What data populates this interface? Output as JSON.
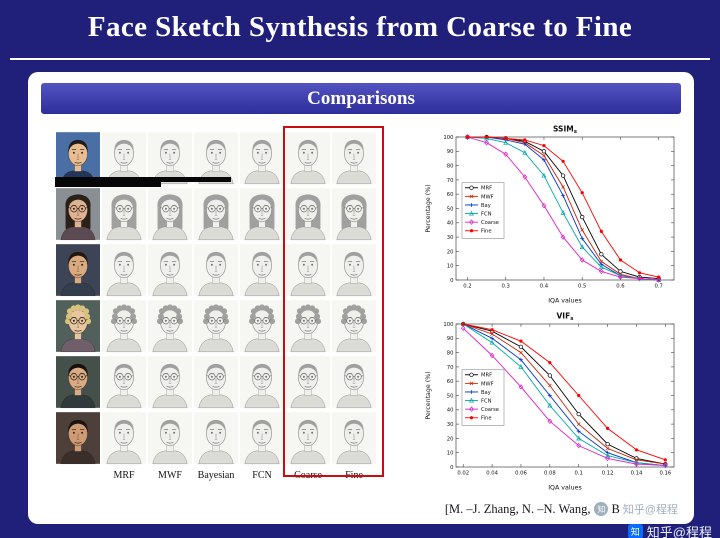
{
  "slide": {
    "title": "Face Sketch Synthesis from Coarse to Fine",
    "section_header": "Comparisons",
    "citation_prefix": "[M. –J. Zhang, N. –N. Wang,",
    "citation_suffix": "B",
    "watermark": "知乎@程程",
    "watermark_logo_char": "知"
  },
  "colors": {
    "background": "#20207b",
    "header_bar": "#3a3aad",
    "highlight_box": "#cf0a0a"
  },
  "comparison_grid": {
    "method_labels": [
      "MRF",
      "MWF",
      "Bayesian",
      "FCN",
      "Coarse",
      "Fine"
    ],
    "highlighted_methods": [
      "Coarse",
      "Fine"
    ],
    "rows": [
      {
        "hair": "short",
        "hair_color": "#1c1c1c",
        "glasses": false,
        "photo_bg": "#4a6fa5",
        "skin": "#e8bd91",
        "shirt": "#24355c"
      },
      {
        "hair": "long",
        "hair_color": "#2a2118",
        "glasses": true,
        "photo_bg": "#8a8f94",
        "skin": "#dfb293",
        "shirt": "#5b4a52"
      },
      {
        "hair": "short",
        "hair_color": "#23180f",
        "glasses": false,
        "photo_bg": "#3c4455",
        "skin": "#d9a97f",
        "shirt": "#323d4e"
      },
      {
        "hair": "curly",
        "hair_color": "#d9c27e",
        "glasses": true,
        "photo_bg": "#51605a",
        "skin": "#e9c6a2",
        "shirt": "#6e5f6b"
      },
      {
        "hair": "short",
        "hair_color": "#15100c",
        "glasses": true,
        "photo_bg": "#45504a",
        "skin": "#d8ab84",
        "shirt": "#2e3a3c"
      },
      {
        "hair": "short",
        "hair_color": "#191310",
        "glasses": false,
        "photo_bg": "#4d3f39",
        "skin": "#cf9b74",
        "shirt": "#3a2e2a"
      }
    ]
  },
  "chart_data": [
    {
      "type": "line",
      "title": "SSIM",
      "title_sub": "s",
      "xlabel": "IQA values",
      "ylabel": "Percentage (%)",
      "xlim": [
        0.17,
        0.74
      ],
      "ylim": [
        0,
        100
      ],
      "xtick_values": [
        0.2,
        0.3,
        0.4,
        0.5,
        0.6,
        0.7
      ],
      "xtick_labels": [
        "0.2",
        "0.3",
        "0.4",
        "0.5",
        "0.6",
        "0.7"
      ],
      "ytick_values": [
        0,
        10,
        20,
        30,
        40,
        50,
        60,
        70,
        80,
        90,
        100
      ],
      "legend_position": "left-middle",
      "x": [
        0.2,
        0.25,
        0.3,
        0.35,
        0.4,
        0.45,
        0.5,
        0.55,
        0.6,
        0.65,
        0.7
      ],
      "series": [
        {
          "name": "MRF",
          "color": "#000000",
          "marker": "circle",
          "values": [
            100,
            100,
            99,
            97,
            90,
            73,
            44,
            18,
            6,
            2,
            1
          ]
        },
        {
          "name": "MWF",
          "color": "#cc2200",
          "marker": "x",
          "values": [
            100,
            100,
            99,
            96,
            87,
            65,
            35,
            13,
            4,
            1,
            0
          ]
        },
        {
          "name": "Bay",
          "color": "#0033cc",
          "marker": "plus",
          "values": [
            100,
            100,
            98,
            95,
            84,
            59,
            29,
            11,
            3,
            1,
            0
          ]
        },
        {
          "name": "FCN",
          "color": "#00a8a8",
          "marker": "triangle",
          "values": [
            100,
            99,
            96,
            89,
            73,
            47,
            23,
            9,
            3,
            1,
            0
          ]
        },
        {
          "name": "Coarse",
          "color": "#e020c8",
          "marker": "diamond",
          "values": [
            100,
            96,
            88,
            72,
            52,
            30,
            14,
            6,
            2,
            1,
            0
          ]
        },
        {
          "name": "Fine",
          "color": "#ff0000",
          "marker": "dot",
          "values": [
            100,
            100,
            99,
            98,
            94,
            83,
            61,
            34,
            14,
            5,
            2
          ]
        }
      ]
    },
    {
      "type": "line",
      "title": "VIF",
      "title_sub": "s",
      "xlabel": "IQA values",
      "ylabel": "Percentage (%)",
      "xlim": [
        0.015,
        0.166
      ],
      "ylim": [
        0,
        100
      ],
      "xtick_values": [
        0.02,
        0.04,
        0.06,
        0.08,
        0.1,
        0.12,
        0.14,
        0.16
      ],
      "xtick_labels": [
        "0.02",
        "0.04",
        "0.06",
        "0.08",
        "0.1",
        "0.12",
        "0.14",
        "0.16"
      ],
      "ytick_values": [
        0,
        10,
        20,
        30,
        40,
        50,
        60,
        70,
        80,
        90,
        100
      ],
      "legend_position": "left-middle",
      "x": [
        0.02,
        0.04,
        0.06,
        0.08,
        0.1,
        0.12,
        0.14,
        0.16
      ],
      "series": [
        {
          "name": "MRF",
          "color": "#000000",
          "marker": "circle",
          "values": [
            100,
            95,
            84,
            64,
            37,
            16,
            6,
            2
          ]
        },
        {
          "name": "MWF",
          "color": "#cc2200",
          "marker": "x",
          "values": [
            100,
            93,
            80,
            57,
            30,
            13,
            5,
            2
          ]
        },
        {
          "name": "Bay",
          "color": "#0033cc",
          "marker": "plus",
          "values": [
            100,
            90,
            75,
            50,
            25,
            10,
            3,
            1
          ]
        },
        {
          "name": "FCN",
          "color": "#00a8a8",
          "marker": "triangle",
          "values": [
            100,
            87,
            70,
            43,
            20,
            8,
            3,
            1
          ]
        },
        {
          "name": "Coarse",
          "color": "#e020c8",
          "marker": "diamond",
          "values": [
            97,
            78,
            56,
            32,
            15,
            6,
            2,
            1
          ]
        },
        {
          "name": "Fine",
          "color": "#ff0000",
          "marker": "dot",
          "values": [
            100,
            96,
            88,
            73,
            50,
            27,
            12,
            5
          ]
        }
      ]
    }
  ]
}
